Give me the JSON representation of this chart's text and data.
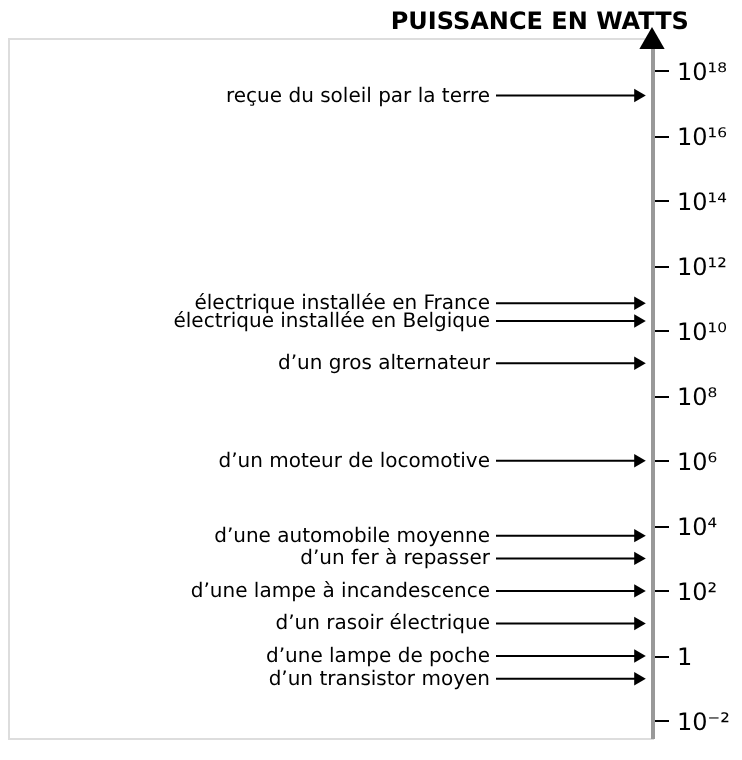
{
  "chart_data": {
    "type": "scatter",
    "title": "PUISSANCE EN WATTS",
    "categories": [
      null
    ],
    "ref_lines": [
      {
        "axis": "y",
        "value": 1.7e+17,
        "label": "reçue du soleil par la terre",
        "color": "#000000",
        "line_style": "solid"
      },
      {
        "axis": "y",
        "value": 70000000000.0,
        "label": "électrique installée en France",
        "color": "#000000",
        "line_style": "solid"
      },
      {
        "axis": "y",
        "value": 20000000000.0,
        "label": "électrique installée en  Belgique",
        "color": "#000000",
        "line_style": "solid"
      },
      {
        "axis": "y",
        "value": 1000000000.0,
        "label": "d’un gros alternateur",
        "color": "#000000",
        "line_style": "solid"
      },
      {
        "axis": "y",
        "value": 1000000.0,
        "label": "d’un moteur de locomotive",
        "color": "#000000",
        "line_style": "solid"
      },
      {
        "axis": "y",
        "value": 5000,
        "label": "d’une automobile moyenne",
        "color": "#000000",
        "line_style": "solid"
      },
      {
        "axis": "y",
        "value": 1000,
        "label": "d’un fer à repasser",
        "color": "#000000",
        "line_style": "solid"
      },
      {
        "axis": "y",
        "value": 100,
        "label": "d’une lampe à incandescence",
        "color": "#000000",
        "line_style": "solid"
      },
      {
        "axis": "y",
        "value": 10,
        "label": "d’un rasoir électrique",
        "color": "#000000",
        "line_style": "solid"
      },
      {
        "axis": "y",
        "value": 1,
        "label": "d’une lampe de poche",
        "color": "#000000",
        "line_style": "solid"
      },
      {
        "axis": "y",
        "value": 0.2,
        "label": "d’un transistor moyen",
        "color": "#000000",
        "line_style": "solid"
      }
    ],
    "log": true,
    "ylim": [
      0.003,
      1e+19
    ],
    "yticks": [
      {
        "value": 0.01,
        "label": "10⁻²"
      },
      1,
      {
        "value": 100,
        "label": "10²"
      },
      {
        "value": 10000,
        "label": "10⁴"
      },
      {
        "value": 1000000,
        "label": "10⁶"
      },
      {
        "value": 100000000,
        "label": "10⁸"
      },
      {
        "value": 10000000000,
        "label": "10¹⁰"
      },
      {
        "value": 1000000000000,
        "label": "10¹²"
      },
      {
        "value": 100000000000000,
        "label": "10¹⁴"
      },
      {
        "value": 10000000000000000,
        "label": "10¹⁶"
      },
      {
        "value": 1000000000000000000,
        "label": "10¹⁸"
      }
    ],
    "tick_labels": "y"
  }
}
